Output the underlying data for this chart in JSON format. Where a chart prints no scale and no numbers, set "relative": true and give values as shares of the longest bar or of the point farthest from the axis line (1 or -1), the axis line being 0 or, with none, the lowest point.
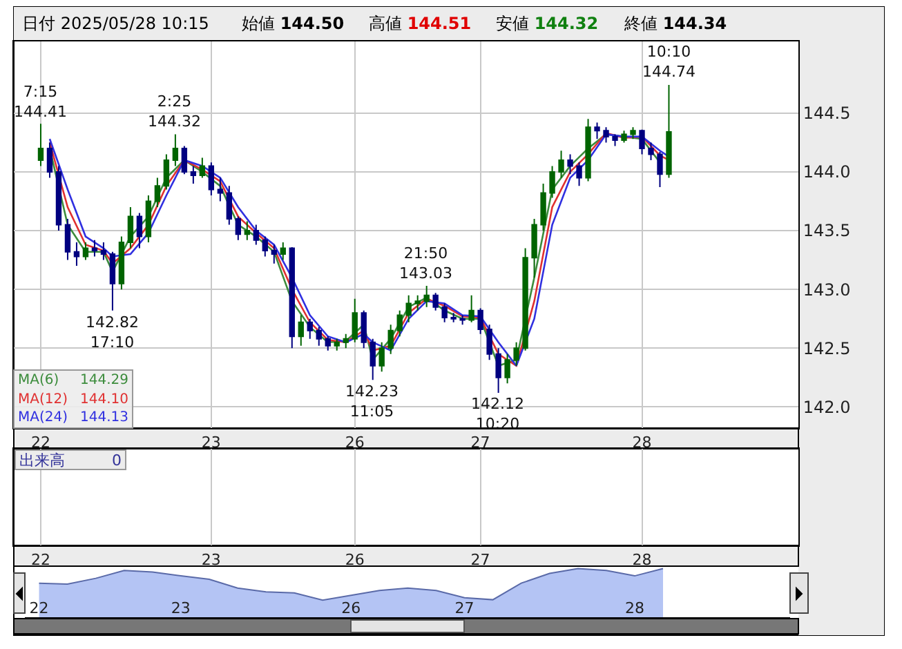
{
  "chart_data": [
    {
      "type": "candlestick",
      "grid": true,
      "annotations": [
        "日付 2025/05/28 10:15",
        "始値 144.50",
        "高値 144.51",
        "安値 144.32",
        "終値 144.34",
        "144.29",
        "144.10",
        "144.13",
        "出来高",
        "0",
        {
          "text": "7:15\n144.41",
          "y": 144.41
        },
        {
          "text": "142.82\n17:10",
          "y": 142.82
        },
        {
          "text": "2:25\n144.32",
          "y": 144.32
        },
        {
          "text": "142.23\n11:05",
          "y": 142.23
        },
        {
          "text": "21:50\n143.03",
          "y": 143.03
        },
        {
          "text": "142.12\n10:20",
          "y": 142.12
        },
        {
          "text": "10:10\n144.74",
          "y": 144.74
        }
      ],
      "categories": [
        "22",
        null,
        null,
        null,
        null,
        null,
        null,
        null,
        null,
        null,
        null,
        null,
        null,
        null,
        null,
        null,
        null,
        null,
        null,
        "23",
        null,
        null,
        null,
        null,
        null,
        null,
        null,
        null,
        null,
        null,
        null,
        null,
        null,
        null,
        null,
        "26",
        null,
        null,
        null,
        null,
        null,
        null,
        null,
        null,
        null,
        null,
        null,
        null,
        null,
        "27",
        null,
        null,
        null,
        null,
        null,
        null,
        null,
        null,
        null,
        null,
        null,
        null,
        null,
        null,
        null,
        null,
        null,
        "28",
        null,
        null,
        null
      ],
      "ohlc": [
        [
          144.1,
          144.41,
          144.05,
          144.2
        ],
        [
          144.2,
          144.25,
          143.95,
          144.0
        ],
        [
          144.0,
          144.05,
          143.5,
          143.55
        ],
        [
          143.55,
          143.6,
          143.25,
          143.32
        ],
        [
          143.32,
          143.4,
          143.2,
          143.28
        ],
        [
          143.28,
          143.4,
          143.25,
          143.35
        ],
        [
          143.35,
          143.42,
          143.28,
          143.33
        ],
        [
          143.33,
          143.4,
          143.25,
          143.3
        ],
        [
          143.3,
          143.32,
          142.82,
          143.05
        ],
        [
          143.05,
          143.45,
          143.0,
          143.4
        ],
        [
          143.4,
          143.7,
          143.35,
          143.62
        ],
        [
          143.62,
          143.65,
          143.35,
          143.45
        ],
        [
          143.45,
          143.8,
          143.4,
          143.75
        ],
        [
          143.75,
          143.95,
          143.7,
          143.88
        ],
        [
          143.88,
          144.15,
          143.85,
          144.1
        ],
        [
          144.1,
          144.32,
          144.05,
          144.2
        ],
        [
          144.2,
          144.22,
          143.98,
          144.0
        ],
        [
          144.0,
          144.05,
          143.9,
          143.97
        ],
        [
          143.97,
          144.12,
          143.95,
          144.05
        ],
        [
          144.05,
          144.08,
          143.8,
          143.85
        ],
        [
          143.85,
          143.95,
          143.75,
          143.82
        ],
        [
          143.82,
          143.88,
          143.55,
          143.6
        ],
        [
          143.6,
          143.62,
          143.42,
          143.47
        ],
        [
          143.47,
          143.58,
          143.42,
          143.5
        ],
        [
          143.5,
          143.55,
          143.38,
          143.42
        ],
        [
          143.42,
          143.45,
          143.28,
          143.33
        ],
        [
          143.33,
          143.38,
          143.22,
          143.3
        ],
        [
          143.3,
          143.4,
          143.25,
          143.35
        ],
        [
          143.35,
          143.36,
          142.5,
          142.6
        ],
        [
          142.6,
          142.78,
          142.52,
          142.72
        ],
        [
          142.72,
          142.75,
          142.58,
          142.65
        ],
        [
          142.65,
          142.68,
          142.52,
          142.58
        ],
        [
          142.58,
          142.6,
          142.48,
          142.52
        ],
        [
          142.52,
          142.58,
          142.48,
          142.55
        ],
        [
          142.55,
          142.62,
          142.5,
          142.58
        ],
        [
          142.58,
          142.92,
          142.55,
          142.8
        ],
        [
          142.8,
          142.82,
          142.5,
          142.55
        ],
        [
          142.55,
          142.58,
          142.23,
          142.35
        ],
        [
          142.35,
          142.55,
          142.3,
          142.5
        ],
        [
          142.5,
          142.7,
          142.45,
          142.65
        ],
        [
          142.65,
          142.82,
          142.6,
          142.78
        ],
        [
          142.78,
          142.95,
          142.72,
          142.88
        ],
        [
          142.88,
          142.95,
          142.82,
          142.9
        ],
        [
          142.9,
          143.03,
          142.85,
          142.95
        ],
        [
          142.95,
          142.97,
          142.82,
          142.85
        ],
        [
          142.85,
          142.88,
          142.72,
          142.76
        ],
        [
          142.76,
          142.8,
          142.72,
          142.75
        ],
        [
          142.75,
          142.78,
          142.7,
          142.74
        ],
        [
          142.74,
          142.95,
          142.72,
          142.82
        ],
        [
          142.82,
          142.84,
          142.62,
          142.66
        ],
        [
          142.66,
          142.7,
          142.4,
          142.45
        ],
        [
          142.45,
          142.5,
          142.12,
          142.25
        ],
        [
          142.25,
          142.45,
          142.2,
          142.4
        ],
        [
          142.4,
          142.55,
          142.35,
          142.5
        ],
        [
          142.5,
          143.35,
          142.48,
          143.27
        ],
        [
          143.27,
          143.6,
          143.1,
          143.55
        ],
        [
          143.55,
          143.9,
          143.5,
          143.82
        ],
        [
          143.82,
          144.05,
          143.78,
          144.0
        ],
        [
          144.0,
          144.18,
          143.95,
          144.1
        ],
        [
          144.1,
          144.15,
          143.98,
          144.05
        ],
        [
          144.05,
          144.08,
          143.88,
          143.95
        ],
        [
          143.95,
          144.45,
          143.92,
          144.38
        ],
        [
          144.38,
          144.42,
          144.28,
          144.35
        ],
        [
          144.35,
          144.38,
          144.25,
          144.3
        ],
        [
          144.3,
          144.32,
          144.22,
          144.27
        ],
        [
          144.27,
          144.35,
          144.25,
          144.32
        ],
        [
          144.32,
          144.38,
          144.28,
          144.35
        ],
        [
          144.35,
          144.36,
          144.15,
          144.2
        ],
        [
          144.2,
          144.25,
          144.1,
          144.15
        ],
        [
          144.15,
          144.17,
          143.87,
          143.98
        ],
        [
          143.98,
          144.74,
          143.95,
          144.34
        ]
      ],
      "series": [
        {
          "name": "MA(6)",
          "type": "line",
          "color": "#3c8c3c",
          "values": [
            null,
            144.2,
            null,
            143.55,
            null,
            143.32,
            null,
            143.32,
            143.15,
            null,
            143.45,
            null,
            143.62,
            null,
            143.95,
            null,
            144.1,
            null,
            144.0,
            null,
            143.88,
            null,
            143.55,
            null,
            143.45,
            null,
            143.32,
            null,
            142.9,
            null,
            142.68,
            null,
            142.55,
            null,
            142.56,
            null,
            142.7,
            142.4,
            null,
            142.58,
            null,
            142.85,
            null,
            142.93,
            null,
            142.82,
            null,
            142.75,
            null,
            142.75,
            null,
            142.35,
            null,
            142.4,
            null,
            143.1,
            null,
            143.85,
            null,
            144.05,
            null,
            144.2,
            null,
            144.32,
            null,
            144.3,
            null,
            144.28,
            null,
            144.08,
            null
          ]
        },
        {
          "name": "MA(12)",
          "type": "line",
          "color": "#e03030",
          "values": [
            null,
            144.25,
            null,
            143.7,
            null,
            143.38,
            null,
            143.33,
            143.22,
            null,
            143.35,
            null,
            143.55,
            null,
            143.88,
            null,
            144.1,
            null,
            144.02,
            null,
            143.92,
            null,
            143.62,
            null,
            143.48,
            null,
            143.35,
            null,
            143.0,
            null,
            142.72,
            null,
            142.57,
            null,
            142.55,
            null,
            142.65,
            142.48,
            null,
            142.52,
            null,
            142.8,
            null,
            142.92,
            null,
            142.86,
            null,
            142.77,
            null,
            142.76,
            null,
            142.45,
            null,
            142.35,
            null,
            142.9,
            null,
            143.7,
            null,
            144.0,
            null,
            144.15,
            null,
            144.33,
            null,
            144.29,
            null,
            144.3,
            null,
            144.14,
            144.1
          ]
        },
        {
          "name": "MA(24)",
          "type": "line",
          "color": "#3030e0",
          "values": [
            null,
            144.28,
            null,
            143.85,
            null,
            143.45,
            null,
            143.35,
            143.28,
            null,
            143.3,
            null,
            143.48,
            null,
            143.8,
            null,
            144.1,
            null,
            144.05,
            null,
            143.95,
            null,
            143.7,
            null,
            143.5,
            null,
            143.38,
            null,
            143.1,
            null,
            142.78,
            null,
            142.6,
            null,
            142.55,
            null,
            142.62,
            142.55,
            null,
            142.48,
            null,
            142.75,
            null,
            142.9,
            null,
            142.88,
            null,
            142.78,
            null,
            142.77,
            null,
            142.55,
            null,
            142.35,
            null,
            142.75,
            null,
            143.55,
            null,
            143.95,
            null,
            144.1,
            null,
            144.32,
            null,
            144.3,
            null,
            144.3,
            null,
            144.18,
            144.13
          ]
        }
      ],
      "ylim": [
        141.82,
        145.11
      ],
      "yticks": [
        {
          "value": 142.0,
          "label": "142.0"
        },
        {
          "value": 142.5,
          "label": "142.5"
        },
        {
          "value": 143.0,
          "label": "143.0"
        },
        {
          "value": 143.5,
          "label": "143.5"
        },
        {
          "value": 144.0,
          "label": "144.0"
        },
        {
          "value": 144.5,
          "label": "144.5"
        }
      ]
    },
    {
      "type": "area",
      "relative": true,
      "color": "#b4c4f4",
      "categories": [
        "22",
        null,
        null,
        null,
        null,
        "23",
        null,
        null,
        null,
        null,
        null,
        "26",
        null,
        null,
        null,
        "27",
        null,
        null,
        null,
        null,
        null,
        "28",
        null
      ],
      "values": [
        0.7,
        0.68,
        0.8,
        0.96,
        0.93,
        0.85,
        0.78,
        0.6,
        0.52,
        0.5,
        0.35,
        0.45,
        0.55,
        0.6,
        0.55,
        0.4,
        0.36,
        0.7,
        0.9,
        1.0,
        0.96,
        0.85,
        1.0
      ]
    }
  ]
}
